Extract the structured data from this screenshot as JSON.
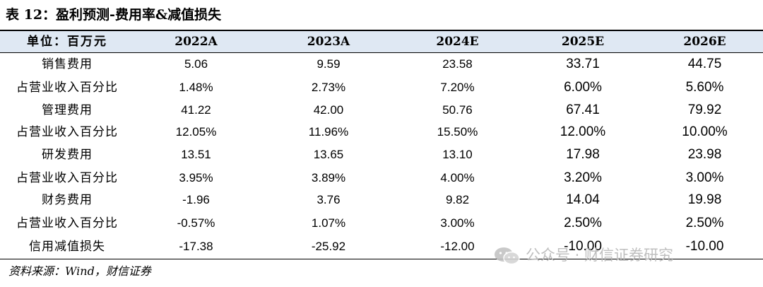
{
  "title": "表 12：盈利预测-费用率&减值损失",
  "table": {
    "headers": [
      "单位：百万元",
      "2022A",
      "2023A",
      "2024E",
      "2025E",
      "2026E"
    ],
    "rows": [
      {
        "label": "销售费用",
        "values": [
          "5.06",
          "9.59",
          "23.58",
          "33.71",
          "44.75"
        ]
      },
      {
        "label": "占营业收入百分比",
        "values": [
          "1.48%",
          "2.73%",
          "7.20%",
          "6.00%",
          "5.60%"
        ]
      },
      {
        "label": "管理费用",
        "values": [
          "41.22",
          "42.00",
          "50.76",
          "67.41",
          "79.92"
        ]
      },
      {
        "label": "占营业收入百分比",
        "values": [
          "12.05%",
          "11.96%",
          "15.50%",
          "12.00%",
          "10.00%"
        ]
      },
      {
        "label": "研发费用",
        "values": [
          "13.51",
          "13.65",
          "13.10",
          "17.98",
          "23.98"
        ]
      },
      {
        "label": "占营业收入百分比",
        "values": [
          "3.95%",
          "3.89%",
          "4.00%",
          "3.20%",
          "3.00%"
        ]
      },
      {
        "label": "财务费用",
        "values": [
          "-1.96",
          "3.76",
          "9.82",
          "14.04",
          "19.98"
        ]
      },
      {
        "label": "占营业收入百分比",
        "values": [
          "-0.57%",
          "1.07%",
          "3.00%",
          "2.50%",
          "2.50%"
        ]
      },
      {
        "label": "信用减值损失",
        "values": [
          "-17.38",
          "-25.92",
          "-12.00",
          "-10.00",
          "-10.00"
        ]
      }
    ]
  },
  "source": "资料来源：Wind，财信证券",
  "watermark": {
    "text": "公众号 · 财信证券研究",
    "icon": "wechat-icon"
  }
}
